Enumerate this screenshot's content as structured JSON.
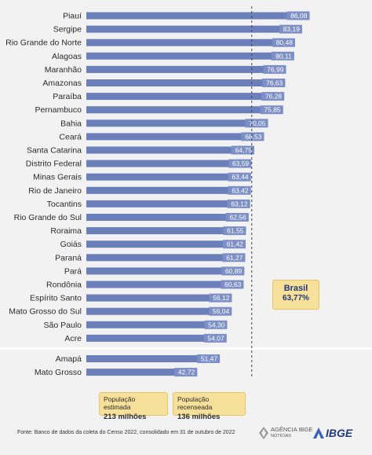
{
  "chart_data": {
    "type": "bar",
    "orientation": "horizontal",
    "categories": [
      "Piauí",
      "Sergipe",
      "Rio Grande do Norte",
      "Alagoas",
      "Maranhão",
      "Amazonas",
      "Paraíba",
      "Pernambuco",
      "Bahia",
      "Ceará",
      "Santa Catarina",
      "Distrito Federal",
      "Minas Gerais",
      "Rio de Janeiro",
      "Tocantins",
      "Rio Grande do Sul",
      "Roraima",
      "Goiás",
      "Paraná",
      "Pará",
      "Rondônia",
      "Espírito Santo",
      "Mato Grosso do Sul",
      "São Paulo",
      "Acre",
      "Amapá",
      "Mato Grosso"
    ],
    "values": [
      86.08,
      83.19,
      80.48,
      80.11,
      76.99,
      76.63,
      76.28,
      75.85,
      70.05,
      68.53,
      64.75,
      63.59,
      63.44,
      63.42,
      63.12,
      62.56,
      61.55,
      61.42,
      61.27,
      60.89,
      60.63,
      56.12,
      56.04,
      54.3,
      54.07,
      51.47,
      42.72
    ],
    "value_labels": [
      "86,08",
      "83,19",
      "80,48",
      "80,11",
      "76,99",
      "76,63",
      "76,28",
      "75,85",
      "70,05",
      "68,53",
      "64,75",
      "63,59",
      "63,44",
      "63,42",
      "63,12",
      "62,56",
      "61,55",
      "61,42",
      "61,27",
      "60,89",
      "60,63",
      "56,12",
      "56,04",
      "54,30",
      "54,07",
      "51,47",
      "42,72"
    ],
    "xlim": [
      0,
      90
    ],
    "reference_line": {
      "label": "Brasil",
      "value": 63.77,
      "value_label": "63,77%"
    },
    "title": "",
    "xlabel": "",
    "ylabel": "",
    "legend": "none",
    "grid": false,
    "colors": {
      "bar": "#6b7fbb",
      "value_box": "#7d8fc7",
      "callout": "#f7e09a",
      "background": "#f2f2f2"
    }
  },
  "info": {
    "estimated_label": "População estimada",
    "estimated_value": "213 milhões",
    "census_label": "População recenseada",
    "census_value": "136 milhões"
  },
  "source": "Fonte: Banco de dados da coleta do Censo 2022, consolidado em 31 de outubro de 2022",
  "logos": {
    "agencia_line1": "AGÊNCIA IBGE",
    "agencia_line2": "NOTÍCIAS",
    "ibge": "IBGE"
  }
}
